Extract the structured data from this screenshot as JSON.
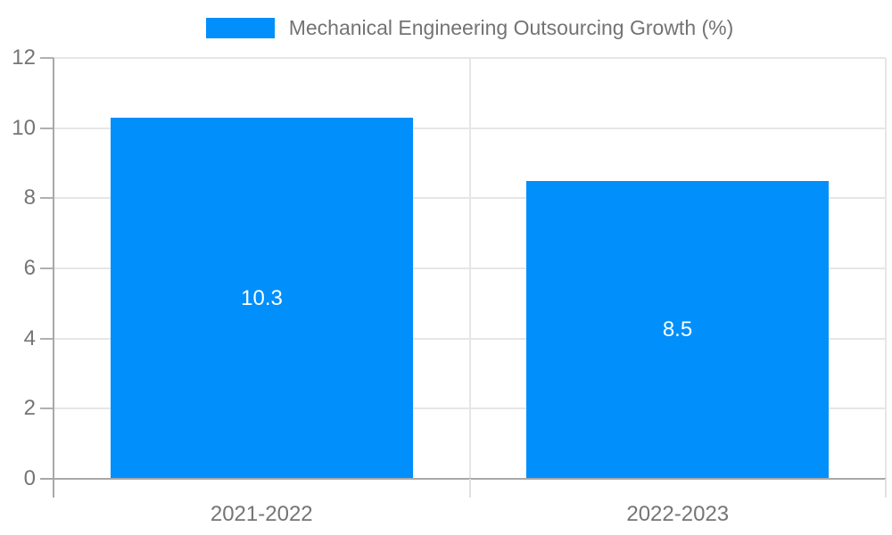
{
  "legend": {
    "label": "Mechanical Engineering Outsourcing Growth (%)",
    "swatch_color": "#008FFB"
  },
  "chart_data": {
    "type": "bar",
    "title": "Mechanical Engineering Outsourcing Growth (%)",
    "categories": [
      "2021-2022",
      "2022-2023"
    ],
    "values": [
      10.3,
      8.5
    ],
    "value_labels": [
      "10.3",
      "8.5"
    ],
    "xlabel": "",
    "ylabel": "",
    "ylim": [
      0,
      12
    ],
    "yticks": [
      0,
      2,
      4,
      6,
      8,
      10,
      12
    ],
    "grid": true,
    "legend_position": "top",
    "bar_color": "#008FFB",
    "data_label_color": "#ffffff"
  },
  "colors": {
    "bar": "#008FFB",
    "axis_line": "#a8a8a8",
    "gridline": "#e6e6e6",
    "tick_label": "#757575",
    "legend_text": "#737373",
    "data_label": "#ffffff",
    "background": "#ffffff"
  }
}
